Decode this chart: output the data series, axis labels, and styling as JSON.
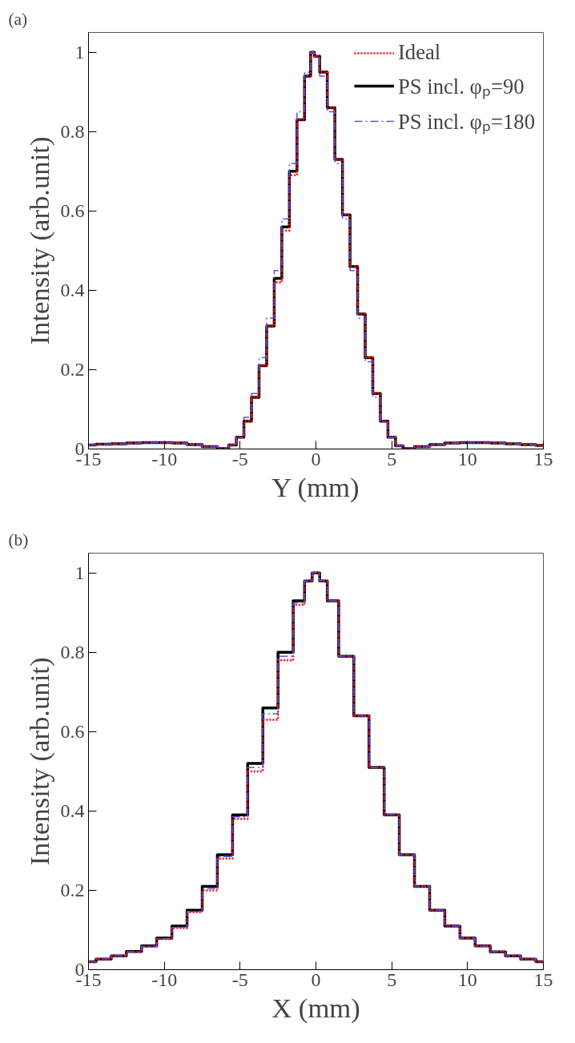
{
  "chart_data": [
    {
      "type": "step",
      "title": "(a)",
      "xlabel": "Y (mm)",
      "ylabel": "Intensity (arb.unit)",
      "x": [
        -15,
        -14,
        -13,
        -12,
        -11,
        -10,
        -9,
        -8,
        -7,
        -6,
        -5.5,
        -5,
        -4.5,
        -4,
        -3.5,
        -3,
        -2.5,
        -2,
        -1.5,
        -1,
        -0.5,
        -0.2,
        0,
        0.5,
        1,
        1.5,
        2,
        2.5,
        3,
        3.5,
        4,
        4.5,
        5,
        5.5,
        6,
        7,
        8,
        9,
        10,
        11,
        12,
        13,
        14,
        15
      ],
      "series": [
        {
          "name": "Ideal",
          "color": "#ff0000",
          "line_style": "dotted",
          "values": [
            0.01,
            0.012,
            0.013,
            0.015,
            0.016,
            0.016,
            0.015,
            0.011,
            0.006,
            0.001,
            0.01,
            0.03,
            0.07,
            0.13,
            0.21,
            0.31,
            0.42,
            0.55,
            0.69,
            0.83,
            0.94,
            1.0,
            0.99,
            0.95,
            0.86,
            0.73,
            0.59,
            0.46,
            0.34,
            0.23,
            0.14,
            0.07,
            0.03,
            0.008,
            0.001,
            0.006,
            0.011,
            0.015,
            0.016,
            0.016,
            0.015,
            0.013,
            0.011,
            0.009
          ]
        },
        {
          "name": "PS incl. φₚ=90",
          "color": "#000000",
          "line_style": "solid",
          "values": [
            0.01,
            0.012,
            0.013,
            0.015,
            0.016,
            0.016,
            0.015,
            0.011,
            0.006,
            0.001,
            0.01,
            0.03,
            0.07,
            0.13,
            0.21,
            0.31,
            0.43,
            0.56,
            0.7,
            0.83,
            0.94,
            1.0,
            0.99,
            0.95,
            0.86,
            0.73,
            0.59,
            0.46,
            0.34,
            0.23,
            0.14,
            0.07,
            0.03,
            0.008,
            0.001,
            0.006,
            0.011,
            0.015,
            0.016,
            0.016,
            0.015,
            0.013,
            0.011,
            0.009
          ]
        },
        {
          "name": "PS incl. φₚ=180",
          "color": "#5555ee",
          "line_style": "dashed",
          "values": [
            0.01,
            0.012,
            0.013,
            0.015,
            0.016,
            0.016,
            0.015,
            0.011,
            0.006,
            0.001,
            0.01,
            0.03,
            0.08,
            0.14,
            0.23,
            0.33,
            0.45,
            0.58,
            0.72,
            0.85,
            0.95,
            1.0,
            0.99,
            0.94,
            0.85,
            0.72,
            0.58,
            0.45,
            0.33,
            0.22,
            0.13,
            0.07,
            0.03,
            0.008,
            0.001,
            0.006,
            0.011,
            0.015,
            0.016,
            0.016,
            0.015,
            0.013,
            0.011,
            0.009
          ]
        }
      ],
      "xlim": [
        -15,
        15
      ],
      "xticks": [
        -15,
        -10,
        -5,
        0,
        5,
        10,
        15
      ],
      "ylim": [
        0,
        1.05
      ],
      "yticks": [
        0,
        0.2,
        0.4,
        0.6,
        0.8,
        1
      ],
      "grid": false,
      "legend": "top right",
      "marker": "none"
    },
    {
      "type": "step",
      "title": "(b)",
      "xlabel": "X (mm)",
      "ylabel": "Intensity (arb.unit)",
      "x": [
        -15,
        -14,
        -13,
        -12,
        -11,
        -10,
        -9,
        -8,
        -7,
        -6,
        -5,
        -4,
        -3,
        -2,
        -1,
        -0.5,
        0,
        0.5,
        1,
        2,
        3,
        4,
        5,
        6,
        7,
        8,
        9,
        10,
        11,
        12,
        13,
        14,
        15
      ],
      "series": [
        {
          "color": "#ff0000",
          "line_style": "dotted",
          "values": [
            0.02,
            0.027,
            0.035,
            0.045,
            0.058,
            0.077,
            0.105,
            0.145,
            0.2,
            0.28,
            0.38,
            0.5,
            0.63,
            0.78,
            0.92,
            0.98,
            1.0,
            0.98,
            0.93,
            0.79,
            0.64,
            0.51,
            0.39,
            0.29,
            0.21,
            0.15,
            0.11,
            0.08,
            0.06,
            0.045,
            0.035,
            0.027,
            0.02
          ]
        },
        {
          "color": "#000000",
          "line_style": "solid",
          "values": [
            0.02,
            0.027,
            0.035,
            0.046,
            0.06,
            0.08,
            0.11,
            0.15,
            0.21,
            0.29,
            0.39,
            0.52,
            0.66,
            0.8,
            0.93,
            0.98,
            1.0,
            0.98,
            0.93,
            0.79,
            0.64,
            0.51,
            0.39,
            0.29,
            0.21,
            0.15,
            0.11,
            0.08,
            0.06,
            0.045,
            0.035,
            0.027,
            0.02
          ]
        },
        {
          "color": "#5555ee",
          "line_style": "dashed",
          "values": [
            0.02,
            0.027,
            0.035,
            0.045,
            0.059,
            0.078,
            0.107,
            0.147,
            0.205,
            0.285,
            0.385,
            0.51,
            0.645,
            0.79,
            0.925,
            0.98,
            1.0,
            0.98,
            0.93,
            0.79,
            0.64,
            0.51,
            0.39,
            0.29,
            0.21,
            0.15,
            0.11,
            0.08,
            0.06,
            0.045,
            0.035,
            0.027,
            0.02
          ]
        }
      ],
      "xlim": [
        -15,
        15
      ],
      "xticks": [
        -15,
        -10,
        -5,
        0,
        5,
        10,
        15
      ],
      "ylim": [
        0,
        1.05
      ],
      "yticks": [
        0,
        0.2,
        0.4,
        0.6,
        0.8,
        1
      ],
      "grid": false,
      "legend": false,
      "marker": "none"
    }
  ]
}
